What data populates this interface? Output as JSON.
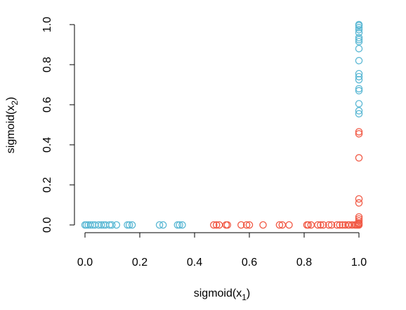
{
  "chart_data": {
    "type": "scatter",
    "title": "",
    "xlabel": "sigmoid(x",
    "xlabel_sub": "1",
    "xlabel_suffix": ")",
    "ylabel": "sigmoid(x",
    "ylabel_sub": "2",
    "ylabel_suffix": ")",
    "xlim": [
      0,
      1
    ],
    "ylim": [
      0,
      1
    ],
    "xticks": [
      "0.0",
      "0.2",
      "0.4",
      "0.6",
      "0.8",
      "1.0"
    ],
    "yticks": [
      "0.0",
      "0.2",
      "0.4",
      "0.6",
      "0.8",
      "1.0"
    ],
    "grid": false,
    "series": [
      {
        "color": "#5bb8d4",
        "points": [
          [
            0.0,
            0.0
          ],
          [
            0.005,
            0.0
          ],
          [
            0.012,
            0.0
          ],
          [
            0.02,
            0.0
          ],
          [
            0.028,
            0.0
          ],
          [
            0.036,
            0.0
          ],
          [
            0.05,
            0.0
          ],
          [
            0.06,
            0.0
          ],
          [
            0.068,
            0.0
          ],
          [
            0.075,
            0.0
          ],
          [
            0.09,
            0.0
          ],
          [
            0.098,
            0.0
          ],
          [
            0.115,
            0.0
          ],
          [
            0.155,
            0.0
          ],
          [
            0.162,
            0.0
          ],
          [
            0.172,
            0.0
          ],
          [
            0.272,
            0.0
          ],
          [
            0.285,
            0.0
          ],
          [
            0.338,
            0.0
          ],
          [
            0.345,
            0.0
          ],
          [
            0.355,
            0.0
          ],
          [
            1.0,
            1.0
          ],
          [
            1.0,
            0.995
          ],
          [
            1.0,
            0.985
          ],
          [
            1.0,
            0.975
          ],
          [
            1.0,
            0.96
          ],
          [
            1.0,
            0.935
          ],
          [
            1.0,
            0.925
          ],
          [
            1.0,
            0.915
          ],
          [
            1.0,
            0.88
          ],
          [
            1.0,
            0.82
          ],
          [
            1.0,
            0.755
          ],
          [
            1.0,
            0.74
          ],
          [
            1.0,
            0.725
          ],
          [
            1.0,
            0.68
          ],
          [
            1.0,
            0.67
          ],
          [
            1.0,
            0.605
          ],
          [
            1.0,
            0.57
          ],
          [
            1.0,
            0.555
          ]
        ]
      },
      {
        "color": "#f15a46",
        "points": [
          [
            0.47,
            0.0
          ],
          [
            0.48,
            0.0
          ],
          [
            0.49,
            0.0
          ],
          [
            0.515,
            0.0
          ],
          [
            0.52,
            0.0
          ],
          [
            0.57,
            0.0
          ],
          [
            0.59,
            0.0
          ],
          [
            0.6,
            0.0
          ],
          [
            0.65,
            0.0
          ],
          [
            0.71,
            0.0
          ],
          [
            0.72,
            0.0
          ],
          [
            0.745,
            0.0
          ],
          [
            0.81,
            0.0
          ],
          [
            0.815,
            0.0
          ],
          [
            0.825,
            0.0
          ],
          [
            0.85,
            0.0
          ],
          [
            0.86,
            0.0
          ],
          [
            0.87,
            0.0
          ],
          [
            0.89,
            0.0
          ],
          [
            0.9,
            0.0
          ],
          [
            0.92,
            0.0
          ],
          [
            0.93,
            0.0
          ],
          [
            0.94,
            0.0
          ],
          [
            0.95,
            0.0
          ],
          [
            0.96,
            0.0
          ],
          [
            0.965,
            0.0
          ],
          [
            0.975,
            0.0
          ],
          [
            0.985,
            0.0
          ],
          [
            0.99,
            0.0
          ],
          [
            0.995,
            0.0
          ],
          [
            1.0,
            0.0
          ],
          [
            1.0,
            0.005
          ],
          [
            1.0,
            0.01
          ],
          [
            1.0,
            0.02
          ],
          [
            1.0,
            0.03
          ],
          [
            1.0,
            0.04
          ],
          [
            1.0,
            0.11
          ],
          [
            1.0,
            0.13
          ],
          [
            1.0,
            0.335
          ],
          [
            1.0,
            0.455
          ],
          [
            1.0,
            0.465
          ]
        ]
      }
    ]
  }
}
